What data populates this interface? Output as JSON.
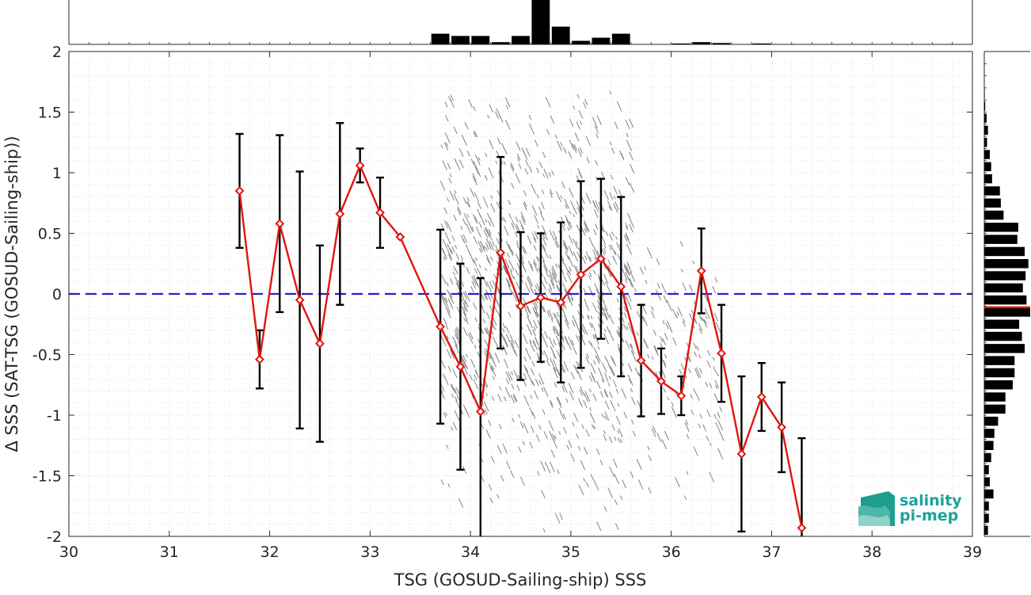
{
  "chart_data": {
    "type": "scatter",
    "xlabel": "TSG (GOSUD-Sailing-ship) SSS",
    "ylabel": "Δ SSS (SAT-TSG (GOSUD-Sailing-ship))",
    "xlim": [
      30,
      39
    ],
    "ylim": [
      -2,
      2
    ],
    "xticks": [
      "30",
      "31",
      "32",
      "33",
      "34",
      "35",
      "36",
      "37",
      "38",
      "39"
    ],
    "yticks": [
      "-2",
      "-1.5",
      "-1",
      "-0.5",
      "0",
      "0.5",
      "1",
      "1.5",
      "2"
    ],
    "grid": true,
    "zero_line": {
      "y": 0,
      "style": "dashed",
      "color": "#1f1fd6"
    },
    "colors": {
      "mean": "#e0150f",
      "errorbar": "#000000",
      "scatter": "#8c8c8c",
      "hist": "#000000"
    },
    "binned_mean": {
      "x": [
        31.7,
        31.9,
        32.1,
        32.3,
        32.5,
        32.7,
        32.9,
        33.1,
        33.3,
        33.7,
        33.9,
        34.1,
        34.3,
        34.5,
        34.7,
        34.9,
        35.1,
        35.3,
        35.5,
        35.7,
        35.9,
        36.1,
        36.3,
        36.5,
        36.7,
        36.9,
        37.1,
        37.3
      ],
      "y": [
        0.85,
        -0.54,
        0.58,
        -0.05,
        -0.41,
        0.66,
        1.06,
        0.67,
        0.47,
        -0.27,
        -0.6,
        -0.97,
        0.34,
        -0.1,
        -0.03,
        -0.07,
        0.16,
        0.29,
        0.06,
        -0.55,
        -0.72,
        -0.84,
        0.19,
        -0.49,
        -1.32,
        -0.85,
        -1.1,
        -1.93
      ],
      "err": [
        0.47,
        0.24,
        0.73,
        1.06,
        0.81,
        0.75,
        0.14,
        0.29,
        0.0,
        0.8,
        0.85,
        1.1,
        0.79,
        0.61,
        0.53,
        0.66,
        0.77,
        0.66,
        0.74,
        0.46,
        0.27,
        0.16,
        0.35,
        0.4,
        0.64,
        0.28,
        0.37,
        0.74
      ]
    },
    "scatter_region": {
      "x_range": [
        33.7,
        35.6
      ],
      "y_range": [
        -2.0,
        1.7
      ],
      "extra_x_range": [
        35.6,
        36.5
      ],
      "extra_y_range": [
        -1.7,
        0.5
      ]
    },
    "top_histogram": {
      "x": [
        33.7,
        33.9,
        34.1,
        34.3,
        34.5,
        34.7,
        34.9,
        35.1,
        35.3,
        35.5,
        36.1,
        36.3,
        36.5,
        36.9
      ],
      "counts": [
        0.24,
        0.19,
        0.19,
        0.05,
        0.19,
        1.0,
        0.4,
        0.08,
        0.15,
        0.24,
        0.02,
        0.05,
        0.03,
        0.02
      ]
    },
    "right_histogram": {
      "y": [
        1.85,
        1.75,
        1.65,
        1.55,
        1.45,
        1.35,
        1.25,
        1.15,
        1.05,
        0.95,
        0.85,
        0.75,
        0.65,
        0.55,
        0.45,
        0.35,
        0.25,
        0.15,
        0.05,
        -0.05,
        -0.15,
        -0.25,
        -0.35,
        -0.45,
        -0.55,
        -0.65,
        -0.75,
        -0.85,
        -0.95,
        -1.05,
        -1.15,
        -1.25,
        -1.35,
        -1.45,
        -1.55,
        -1.65,
        -1.75,
        -1.85,
        -1.95
      ],
      "counts": [
        0.0,
        0.0,
        0.01,
        0.02,
        0.05,
        0.08,
        0.06,
        0.12,
        0.15,
        0.17,
        0.34,
        0.36,
        0.42,
        0.74,
        0.72,
        0.88,
        0.96,
        0.9,
        0.84,
        0.92,
        1.0,
        0.76,
        0.82,
        0.88,
        0.66,
        0.66,
        0.62,
        0.46,
        0.46,
        0.3,
        0.22,
        0.2,
        0.15,
        0.1,
        0.12,
        0.2,
        0.1,
        0.1,
        0.08
      ],
      "marker_y": -0.11
    }
  },
  "logo": {
    "line1": "salinity",
    "line2": "pi-mep"
  }
}
